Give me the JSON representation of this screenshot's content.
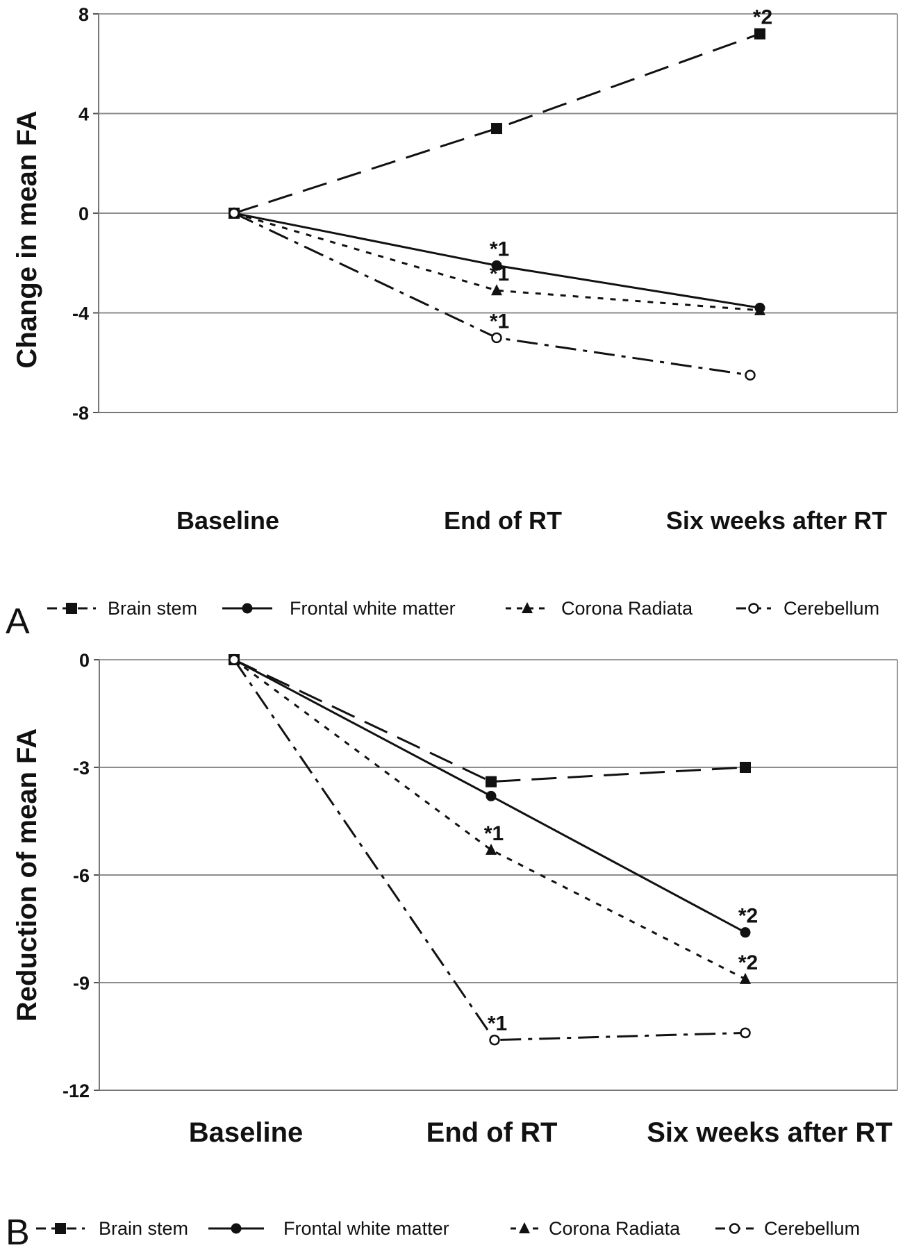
{
  "chart_data": [
    {
      "panel": "A",
      "type": "line",
      "title": "",
      "xlabel": "",
      "ylabel": "Change in mean FA",
      "categories": [
        "Baseline",
        "End of RT",
        "Six weeks after RT"
      ],
      "ylim": [
        -8,
        8
      ],
      "yticks": [
        "8",
        "4",
        "0",
        "-4",
        "-8"
      ],
      "grid": true,
      "legend_position": "bottom",
      "series": [
        {
          "name": "Brain stem",
          "values": [
            0,
            3.4,
            7.2
          ],
          "annotations": [
            "",
            "",
            "*2"
          ]
        },
        {
          "name": "Frontal white matter",
          "values": [
            0,
            -2.1,
            -3.8
          ],
          "annotations": [
            "",
            "*1",
            ""
          ]
        },
        {
          "name": "Corona Radiata",
          "values": [
            0,
            -3.1,
            -3.9
          ],
          "annotations": [
            "",
            "*1",
            ""
          ]
        },
        {
          "name": "Cerebellum",
          "values": [
            0,
            -5.0,
            -6.5
          ],
          "annotations": [
            "",
            "*1",
            ""
          ]
        }
      ]
    },
    {
      "panel": "B",
      "type": "line",
      "title": "",
      "xlabel": "",
      "ylabel": "Reduction of mean FA",
      "categories": [
        "Baseline",
        "End of RT",
        "Six weeks after RT"
      ],
      "ylim": [
        -12,
        0
      ],
      "yticks": [
        "0",
        "-3",
        "-6",
        "-9",
        "-12"
      ],
      "grid": true,
      "legend_position": "bottom",
      "series": [
        {
          "name": "Brain stem",
          "values": [
            0,
            -3.4,
            -3.0
          ],
          "annotations": [
            "",
            "",
            ""
          ]
        },
        {
          "name": "Frontal white matter",
          "values": [
            0,
            -3.8,
            -7.6
          ],
          "annotations": [
            "",
            "",
            "*2"
          ]
        },
        {
          "name": "Corona Radiata",
          "values": [
            0,
            -5.3,
            -8.9
          ],
          "annotations": [
            "",
            "*1",
            "*2"
          ]
        },
        {
          "name": "Cerebellum",
          "values": [
            0,
            -10.6,
            -10.4
          ],
          "annotations": [
            "",
            "*1",
            ""
          ]
        }
      ]
    }
  ]
}
